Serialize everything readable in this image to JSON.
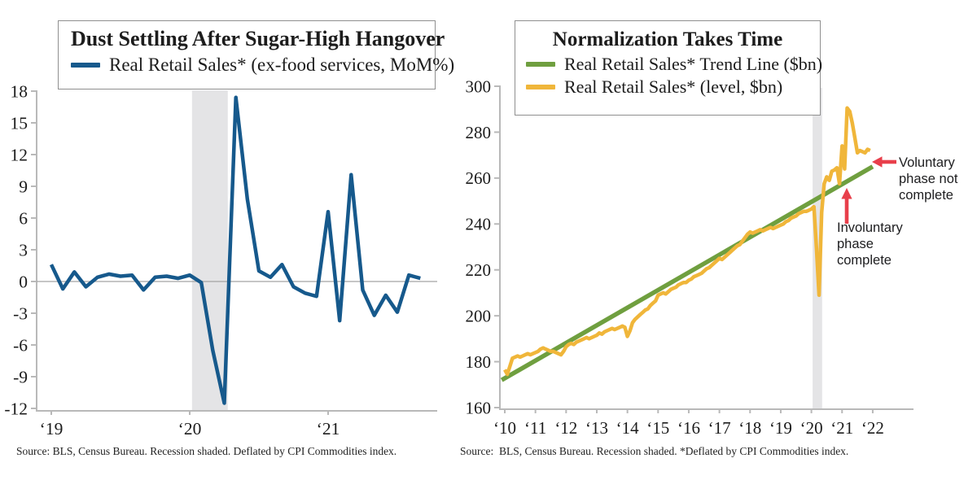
{
  "page": {
    "background": "#ffffff",
    "text_color": "#1c1c1c",
    "accent_red": "#e83f4b",
    "axis_gray": "#b9b9b9",
    "zero_line_gray": "#a3a3a3",
    "band_gray": "#e4e4e6"
  },
  "left": {
    "source": "Source: BLS, Census Bureau. Recession shaded. Deflated by CPI Commodities index."
  },
  "right": {
    "source": "Source:  BLS, Census Bureau. Recession shaded. *Deflated by CPI Commodities index.",
    "annotations": [
      {
        "text": "Voluntary\nphase not\ncomplete",
        "arrow": "left",
        "color": "#e83f4b"
      },
      {
        "text": "Involuntary\nphase\ncomplete",
        "arrow": "up",
        "color": "#e83f4b"
      }
    ]
  },
  "chart_data": [
    {
      "type": "line",
      "title": "Dust Settling After Sugar-High Hangover",
      "xlabel": "",
      "ylabel": "",
      "ylim": [
        -12,
        18
      ],
      "grid": false,
      "zero_line": true,
      "legend_position": "top-box",
      "x_tick_labels": [
        "‘19",
        "‘20",
        "‘21"
      ],
      "y_ticks": [
        18,
        15,
        12,
        9,
        6,
        3,
        0,
        -3,
        -6,
        -9,
        -12
      ],
      "recession_band": {
        "start": "2020-02",
        "end": "2020-04",
        "from_index": 12.2,
        "to_index": 15.3
      },
      "series": [
        {
          "name": "Real Retail Sales* (ex-food services, MoM%)",
          "color": "#16598c",
          "start": "2019-01",
          "frequency": "monthly",
          "values": [
            1.6,
            -0.7,
            0.9,
            -0.5,
            0.4,
            0.7,
            0.5,
            0.6,
            -0.8,
            0.4,
            0.5,
            0.3,
            0.6,
            -0.1,
            -6.5,
            -11.5,
            17.4,
            7.8,
            1.0,
            0.4,
            1.6,
            -0.5,
            -1.1,
            -1.4,
            6.6,
            -3.7,
            10.1,
            -0.8,
            -3.2,
            -1.3,
            -2.9,
            0.6,
            0.3
          ]
        }
      ]
    },
    {
      "type": "line",
      "title": "Normalization Takes Time",
      "xlabel": "",
      "ylabel": "",
      "ylim": [
        160,
        300
      ],
      "grid": false,
      "zero_line": false,
      "legend_position": "top-box",
      "x_tick_labels": [
        "‘10",
        "‘11",
        "‘12",
        "‘13",
        "‘14",
        "‘15",
        "‘16",
        "‘17",
        "‘18",
        "‘19",
        "‘20",
        "‘21",
        "‘22"
      ],
      "y_ticks": [
        300,
        280,
        260,
        240,
        220,
        200,
        180,
        160
      ],
      "recession_band": {
        "start": "2020-02",
        "end": "2020-04",
        "from_year": 2020.04,
        "to_year": 2020.35
      },
      "series": [
        {
          "name": "Real Retail Sales* Trend Line ($bn)",
          "color": "#6f9f3f",
          "x": [
            2009.9,
            2022.0
          ],
          "values": [
            172,
            265
          ]
        },
        {
          "name": "Real Retail Sales* (level, $bn)",
          "color": "#f0b63a",
          "start": "2010-01",
          "frequency": "monthly",
          "values": [
            176.5,
            174.5,
            178,
            181.5,
            182,
            182.5,
            182,
            182.5,
            183,
            183.5,
            183,
            183.5,
            184,
            184.5,
            185.5,
            186,
            185.5,
            185,
            184.5,
            184.5,
            184,
            183.5,
            183,
            184.5,
            186.5,
            187.5,
            188,
            187.5,
            188.5,
            189,
            189.5,
            190,
            190.5,
            190,
            190.5,
            191,
            191.5,
            192.5,
            192,
            193,
            193.5,
            194,
            194.5,
            194,
            194.5,
            195,
            195.5,
            195,
            191,
            193.5,
            197,
            198.5,
            199.5,
            200.5,
            201.5,
            202.5,
            203,
            204.5,
            205.5,
            206.5,
            209,
            209.5,
            210,
            209.5,
            210.5,
            211.5,
            212,
            212.5,
            213.5,
            214,
            214.5,
            214.5,
            215.5,
            216,
            217,
            217.5,
            218,
            218.5,
            219.5,
            220.5,
            221,
            222,
            223,
            224,
            225,
            224.5,
            225.5,
            226.5,
            227.5,
            228.5,
            229.5,
            230.5,
            231,
            232.5,
            234,
            235.5,
            236.5,
            236,
            236.5,
            237,
            237.5,
            237,
            237.5,
            238,
            238.5,
            238,
            238.5,
            239,
            239.5,
            240,
            241,
            241.5,
            242.5,
            243,
            243.5,
            244.5,
            245,
            245.5,
            245.5,
            246,
            246.5,
            247.5,
            229,
            209,
            245,
            257.5,
            260.5,
            259,
            263,
            263.5,
            264.5,
            257.5,
            274,
            264,
            290.5,
            289,
            284,
            277.5,
            271,
            272,
            271.5,
            271,
            272.5,
            272
          ]
        }
      ]
    }
  ]
}
